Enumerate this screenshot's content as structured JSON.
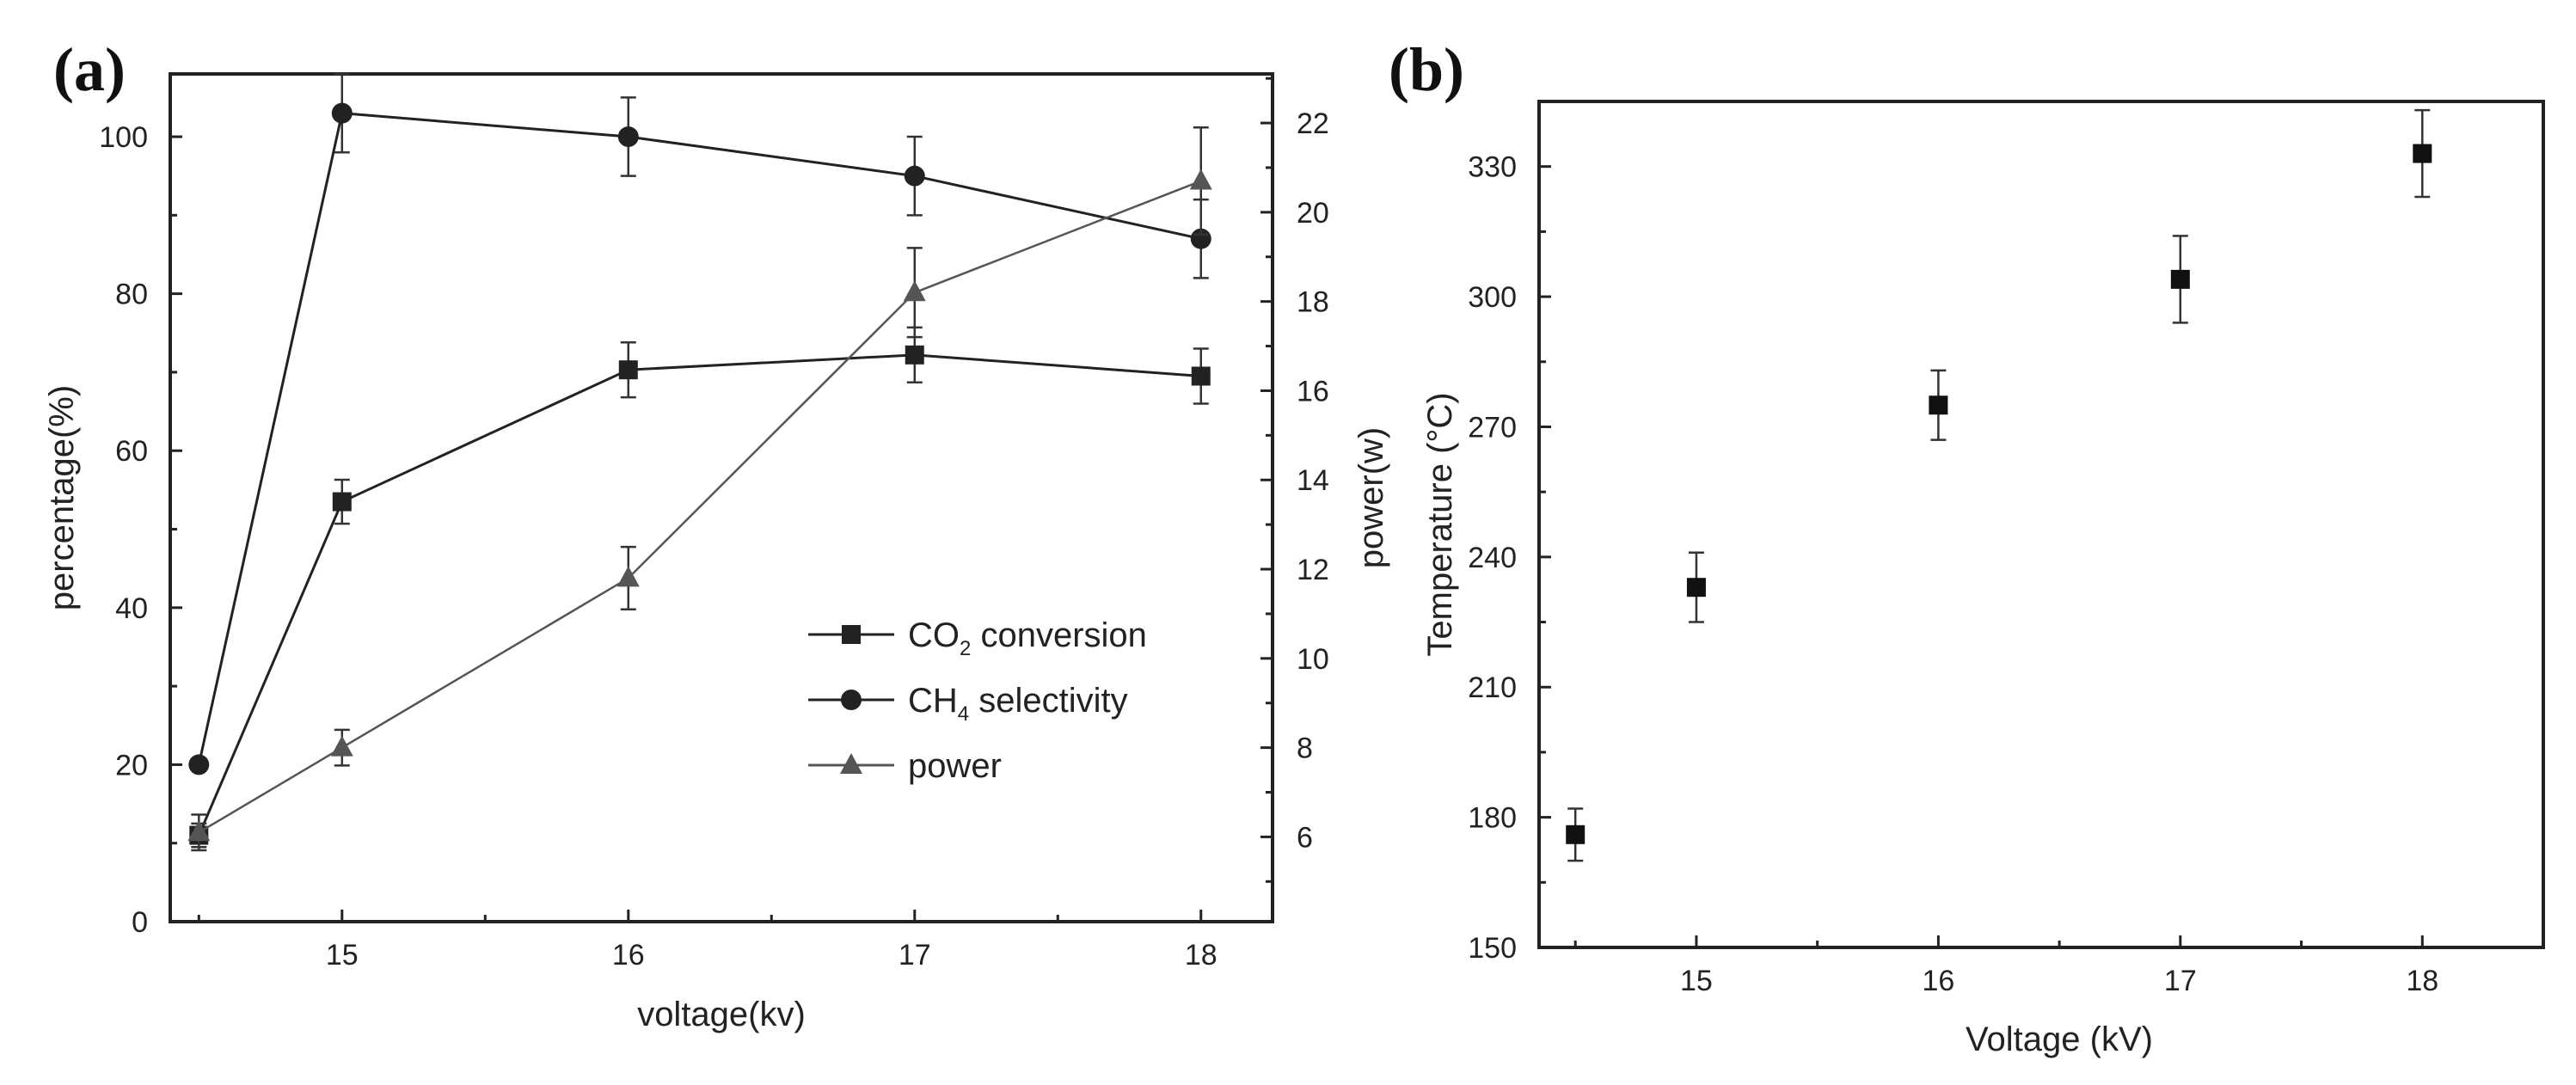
{
  "chart_data": [
    {
      "panel": "(a)",
      "type": "line",
      "xlabel": "voltage(kv)",
      "ylabel": "percentage(%)",
      "y2label": "power(w)",
      "xlim": [
        14.4,
        18.25
      ],
      "ylim": [
        0,
        108
      ],
      "y2lim": [
        4.1,
        23.1
      ],
      "xticks": [
        15,
        16,
        17,
        18
      ],
      "yticks": [
        0,
        20,
        40,
        60,
        80,
        100
      ],
      "y2ticks": [
        6,
        8,
        10,
        12,
        14,
        16,
        18,
        20,
        22
      ],
      "series": [
        {
          "name": "CO2 conversion",
          "legend_main": "CO",
          "legend_sub": "2",
          "legend_rest": " conversion",
          "marker": "square",
          "color": "#222222",
          "axis": "left",
          "x": [
            14.5,
            15,
            16,
            17,
            18
          ],
          "y": [
            11,
            53.5,
            70.3,
            72.2,
            69.5
          ],
          "err": [
            1.5,
            2.8,
            3.5,
            3.5,
            3.5
          ]
        },
        {
          "name": "CH4 selectivity",
          "legend_main": "CH",
          "legend_sub": "4",
          "legend_rest": " selectivity",
          "marker": "circle",
          "color": "#222222",
          "axis": "left",
          "x": [
            14.5,
            15,
            16,
            17,
            18
          ],
          "y": [
            20,
            103,
            100,
            95,
            87
          ],
          "err": [
            0,
            5,
            5,
            5,
            5
          ]
        },
        {
          "name": "power",
          "legend_main": "power",
          "legend_sub": "",
          "legend_rest": "",
          "marker": "triangle",
          "color": "#555555",
          "axis": "right",
          "x": [
            14.5,
            15,
            16,
            17,
            18
          ],
          "y": [
            6.1,
            8,
            11.8,
            18.2,
            20.7
          ],
          "err": [
            0.4,
            0.4,
            0.7,
            1,
            1.2
          ]
        }
      ],
      "legend": "center-right"
    },
    {
      "panel": "(b)",
      "type": "scatter",
      "xlabel": "Voltage (kV)",
      "ylabel": "Temperature (°C)",
      "xlim": [
        14.35,
        18.5
      ],
      "ylim": [
        150,
        345
      ],
      "xticks": [
        15,
        16,
        17,
        18
      ],
      "yticks": [
        150,
        180,
        210,
        240,
        270,
        300,
        330
      ],
      "series": [
        {
          "name": "Temperature",
          "marker": "square",
          "color": "#111111",
          "x": [
            14.5,
            15,
            16,
            17,
            18
          ],
          "y": [
            176,
            233,
            275,
            304,
            333
          ],
          "err": [
            6,
            8,
            8,
            10,
            10
          ]
        }
      ]
    }
  ]
}
